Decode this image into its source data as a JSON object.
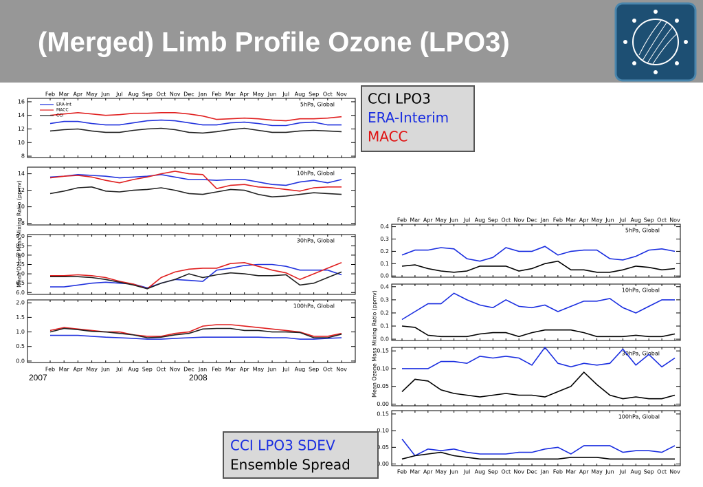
{
  "header": {
    "title": "(Merged) Limb Profile Ozone (LPO3)"
  },
  "chart_data": [
    {
      "type": "line",
      "categories": [
        "Feb",
        "Mar",
        "Apr",
        "May",
        "Jun",
        "Jul",
        "Aug",
        "Sep",
        "Oct",
        "Nov",
        "Dec",
        "Jan",
        "Feb",
        "Mar",
        "Apr",
        "May",
        "Jun",
        "Jul",
        "Aug",
        "Sep",
        "Oct",
        "Nov"
      ],
      "annotations": [
        "2007",
        "2008"
      ],
      "ylabel": "Mean Ozone Mass Mixing Ratio (ppmv)",
      "series": [
        {
          "name": "ERA-Int",
          "color": "#2233dd"
        },
        {
          "name": "MACC",
          "color": "#e02020"
        },
        {
          "name": "CCI",
          "color": "#222222"
        }
      ],
      "legend_box": [
        {
          "text": "CCI LPO3",
          "color": "#000000"
        },
        {
          "text": "ERA-Interim",
          "color": "#1a2ee0"
        },
        {
          "text": "MACC",
          "color": "#e01010"
        }
      ],
      "panels": [
        {
          "label": "5hPa, Global",
          "ylim": [
            7.8,
            16.5
          ],
          "yticks": [
            8,
            10,
            12,
            14,
            16
          ],
          "values": [
            [
              12.8,
              13.1,
              13.1,
              12.8,
              12.6,
              12.6,
              12.9,
              13.2,
              13.3,
              13.2,
              12.9,
              12.6,
              12.6,
              12.9,
              13.0,
              12.8,
              12.5,
              12.5,
              12.9,
              13.0,
              12.6,
              12.6
            ],
            [
              14.0,
              14.2,
              14.4,
              14.2,
              14.0,
              14.1,
              14.3,
              14.3,
              14.4,
              14.4,
              14.2,
              13.9,
              13.4,
              13.5,
              13.6,
              13.5,
              13.3,
              13.2,
              13.5,
              13.5,
              13.6,
              13.8
            ],
            [
              11.7,
              11.9,
              12.0,
              11.7,
              11.5,
              11.5,
              11.8,
              12.0,
              12.1,
              11.9,
              11.5,
              11.4,
              11.6,
              11.9,
              12.1,
              11.8,
              11.5,
              11.5,
              11.7,
              11.8,
              11.7,
              11.6
            ]
          ]
        },
        {
          "label": "10hPa, Global",
          "ylim": [
            7.8,
            14.8
          ],
          "yticks": [
            8,
            10,
            12,
            14
          ],
          "values": [
            [
              13.6,
              13.7,
              13.9,
              13.8,
              13.7,
              13.5,
              13.6,
              13.7,
              13.9,
              13.6,
              13.3,
              13.3,
              13.2,
              13.3,
              13.3,
              13.0,
              12.7,
              12.6,
              13.0,
              13.2,
              12.9,
              13.3
            ],
            [
              13.5,
              13.7,
              13.8,
              13.6,
              13.2,
              12.9,
              13.3,
              13.6,
              14.0,
              14.3,
              14.0,
              13.9,
              12.2,
              12.6,
              12.7,
              12.4,
              12.3,
              12.1,
              11.9,
              12.3,
              12.4,
              12.4
            ],
            [
              11.6,
              11.9,
              12.3,
              12.4,
              11.9,
              11.8,
              12.0,
              12.1,
              12.3,
              12.0,
              11.6,
              11.5,
              11.8,
              12.1,
              12.0,
              11.5,
              11.2,
              11.3,
              11.5,
              11.7,
              11.6,
              11.5
            ]
          ]
        },
        {
          "label": "30hPa, Global",
          "ylim": [
            5.9,
            9.1
          ],
          "yticks": [
            {
              "value": 6,
              "label": "6.0"
            },
            {
              "value": 6.5,
              "label": "6.5"
            },
            {
              "value": 7,
              "label": "7.0"
            },
            {
              "value": 7.5,
              "label": "7.5"
            },
            {
              "value": 8,
              "label": "8.0"
            },
            {
              "value": 8.5,
              "label": "8.5"
            },
            {
              "value": 9,
              "label": "9.0"
            }
          ],
          "values": [
            [
              6.3,
              6.3,
              6.4,
              6.5,
              6.55,
              6.5,
              6.45,
              6.25,
              6.5,
              6.7,
              6.65,
              6.6,
              7.2,
              7.3,
              7.45,
              7.5,
              7.5,
              7.4,
              7.2,
              7.2,
              7.2,
              6.95
            ],
            [
              6.9,
              6.9,
              6.95,
              6.9,
              6.8,
              6.6,
              6.45,
              6.2,
              6.8,
              7.1,
              7.25,
              7.3,
              7.3,
              7.55,
              7.6,
              7.4,
              7.2,
              7.05,
              6.7,
              7.0,
              7.3,
              7.6
            ],
            [
              6.85,
              6.85,
              6.85,
              6.8,
              6.7,
              6.55,
              6.4,
              6.2,
              6.5,
              6.7,
              7.0,
              6.8,
              6.95,
              7.05,
              7.0,
              6.9,
              6.9,
              6.95,
              6.4,
              6.5,
              6.8,
              7.1
            ]
          ]
        },
        {
          "label": "100hPa, Global",
          "ylim": [
            -0.05,
            2.1
          ],
          "yticks": [
            {
              "value": 0,
              "label": "0.0"
            },
            {
              "value": 0.5,
              "label": "0.5"
            },
            {
              "value": 1,
              "label": "1.0"
            },
            {
              "value": 1.5,
              "label": "1.5"
            },
            {
              "value": 2,
              "label": "2.0"
            }
          ],
          "values": [
            [
              0.88,
              0.88,
              0.88,
              0.85,
              0.82,
              0.8,
              0.78,
              0.75,
              0.75,
              0.78,
              0.8,
              0.82,
              0.82,
              0.82,
              0.82,
              0.82,
              0.8,
              0.8,
              0.75,
              0.75,
              0.78,
              0.8
            ],
            [
              1.05,
              1.15,
              1.1,
              1.05,
              1.0,
              1.0,
              0.9,
              0.85,
              0.85,
              0.95,
              1.0,
              1.2,
              1.25,
              1.25,
              1.2,
              1.15,
              1.1,
              1.05,
              1.0,
              0.85,
              0.85,
              0.95
            ],
            [
              1.0,
              1.12,
              1.08,
              1.02,
              1.0,
              0.95,
              0.9,
              0.8,
              0.82,
              0.9,
              0.95,
              1.1,
              1.12,
              1.12,
              1.05,
              1.05,
              1.0,
              1.0,
              0.98,
              0.8,
              0.8,
              0.92
            ]
          ]
        }
      ]
    },
    {
      "type": "line",
      "categories": [
        "Feb",
        "Mar",
        "Apr",
        "May",
        "Jun",
        "Jul",
        "Aug",
        "Sep",
        "Oct",
        "Nov",
        "Dec",
        "Jan",
        "Feb",
        "Mar",
        "Apr",
        "May",
        "Jun",
        "Jul",
        "Aug",
        "Sep",
        "Oct",
        "Nov"
      ],
      "ylabel": "Mean Ozone Mass Mixing Ratio (ppmv)",
      "series": [
        {
          "name": "CCI LPO3 SDEV",
          "color": "#1a2ee0"
        },
        {
          "name": "Ensemble Spread",
          "color": "#000000"
        }
      ],
      "panels": [
        {
          "label": "5hPa, Global",
          "ylim": [
            -0.01,
            0.42
          ],
          "yticks": [
            {
              "value": 0,
              "label": "0.0"
            },
            {
              "value": 0.1,
              "label": "0.1"
            },
            {
              "value": 0.2,
              "label": "0.2"
            },
            {
              "value": 0.3,
              "label": "0.3"
            },
            {
              "value": 0.4,
              "label": "0.4"
            }
          ],
          "values": [
            [
              0.17,
              0.21,
              0.21,
              0.23,
              0.22,
              0.14,
              0.12,
              0.15,
              0.23,
              0.2,
              0.2,
              0.24,
              0.17,
              0.2,
              0.21,
              0.21,
              0.14,
              0.13,
              0.16,
              0.21,
              0.22,
              0.2
            ],
            [
              0.08,
              0.09,
              0.06,
              0.04,
              0.03,
              0.04,
              0.08,
              0.08,
              0.08,
              0.04,
              0.06,
              0.1,
              0.12,
              0.05,
              0.05,
              0.03,
              0.03,
              0.05,
              0.08,
              0.07,
              0.05,
              0.06
            ]
          ]
        },
        {
          "label": "10hPa, Global",
          "ylim": [
            -0.01,
            0.42
          ],
          "yticks": [
            {
              "value": 0,
              "label": "0.0"
            },
            {
              "value": 0.1,
              "label": "0.1"
            },
            {
              "value": 0.2,
              "label": "0.2"
            },
            {
              "value": 0.3,
              "label": "0.3"
            },
            {
              "value": 0.4,
              "label": "0.4"
            }
          ],
          "values": [
            [
              0.15,
              0.21,
              0.27,
              0.27,
              0.35,
              0.3,
              0.26,
              0.24,
              0.3,
              0.25,
              0.24,
              0.26,
              0.21,
              0.25,
              0.29,
              0.29,
              0.31,
              0.24,
              0.2,
              0.25,
              0.3,
              0.3
            ],
            [
              0.1,
              0.09,
              0.03,
              0.02,
              0.02,
              0.02,
              0.04,
              0.05,
              0.05,
              0.02,
              0.05,
              0.07,
              0.07,
              0.07,
              0.05,
              0.02,
              0.02,
              0.02,
              0.03,
              0.02,
              0.02,
              0.04
            ]
          ]
        },
        {
          "label": "30hPa, Global",
          "ylim": [
            -0.005,
            0.16
          ],
          "yticks": [
            {
              "value": 0,
              "label": "0.00"
            },
            {
              "value": 0.05,
              "label": "0.05"
            },
            {
              "value": 0.1,
              "label": "0.10"
            },
            {
              "value": 0.15,
              "label": "0.15"
            }
          ],
          "values": [
            [
              0.1,
              0.1,
              0.1,
              0.12,
              0.12,
              0.115,
              0.135,
              0.13,
              0.135,
              0.13,
              0.11,
              0.16,
              0.115,
              0.105,
              0.115,
              0.11,
              0.115,
              0.155,
              0.11,
              0.14,
              0.105,
              0.13
            ],
            [
              0.035,
              0.07,
              0.065,
              0.04,
              0.03,
              0.025,
              0.02,
              0.025,
              0.03,
              0.025,
              0.025,
              0.02,
              0.035,
              0.05,
              0.09,
              0.055,
              0.025,
              0.015,
              0.02,
              0.015,
              0.015,
              0.025
            ]
          ]
        },
        {
          "label": "100hPa, Global",
          "ylim": [
            -0.005,
            0.16
          ],
          "yticks": [
            {
              "value": 0,
              "label": "0.00"
            },
            {
              "value": 0.05,
              "label": "0.05"
            },
            {
              "value": 0.1,
              "label": "0.10"
            },
            {
              "value": 0.15,
              "label": "0.15"
            }
          ],
          "values": [
            [
              0.075,
              0.025,
              0.045,
              0.04,
              0.045,
              0.035,
              0.03,
              0.03,
              0.03,
              0.035,
              0.035,
              0.045,
              0.05,
              0.03,
              0.055,
              0.055,
              0.055,
              0.035,
              0.04,
              0.04,
              0.035,
              0.055
            ],
            [
              0.015,
              0.025,
              0.03,
              0.035,
              0.025,
              0.02,
              0.015,
              0.015,
              0.015,
              0.015,
              0.015,
              0.015,
              0.015,
              0.02,
              0.02,
              0.02,
              0.015,
              0.015,
              0.015,
              0.015,
              0.015,
              0.015
            ]
          ]
        }
      ]
    }
  ]
}
